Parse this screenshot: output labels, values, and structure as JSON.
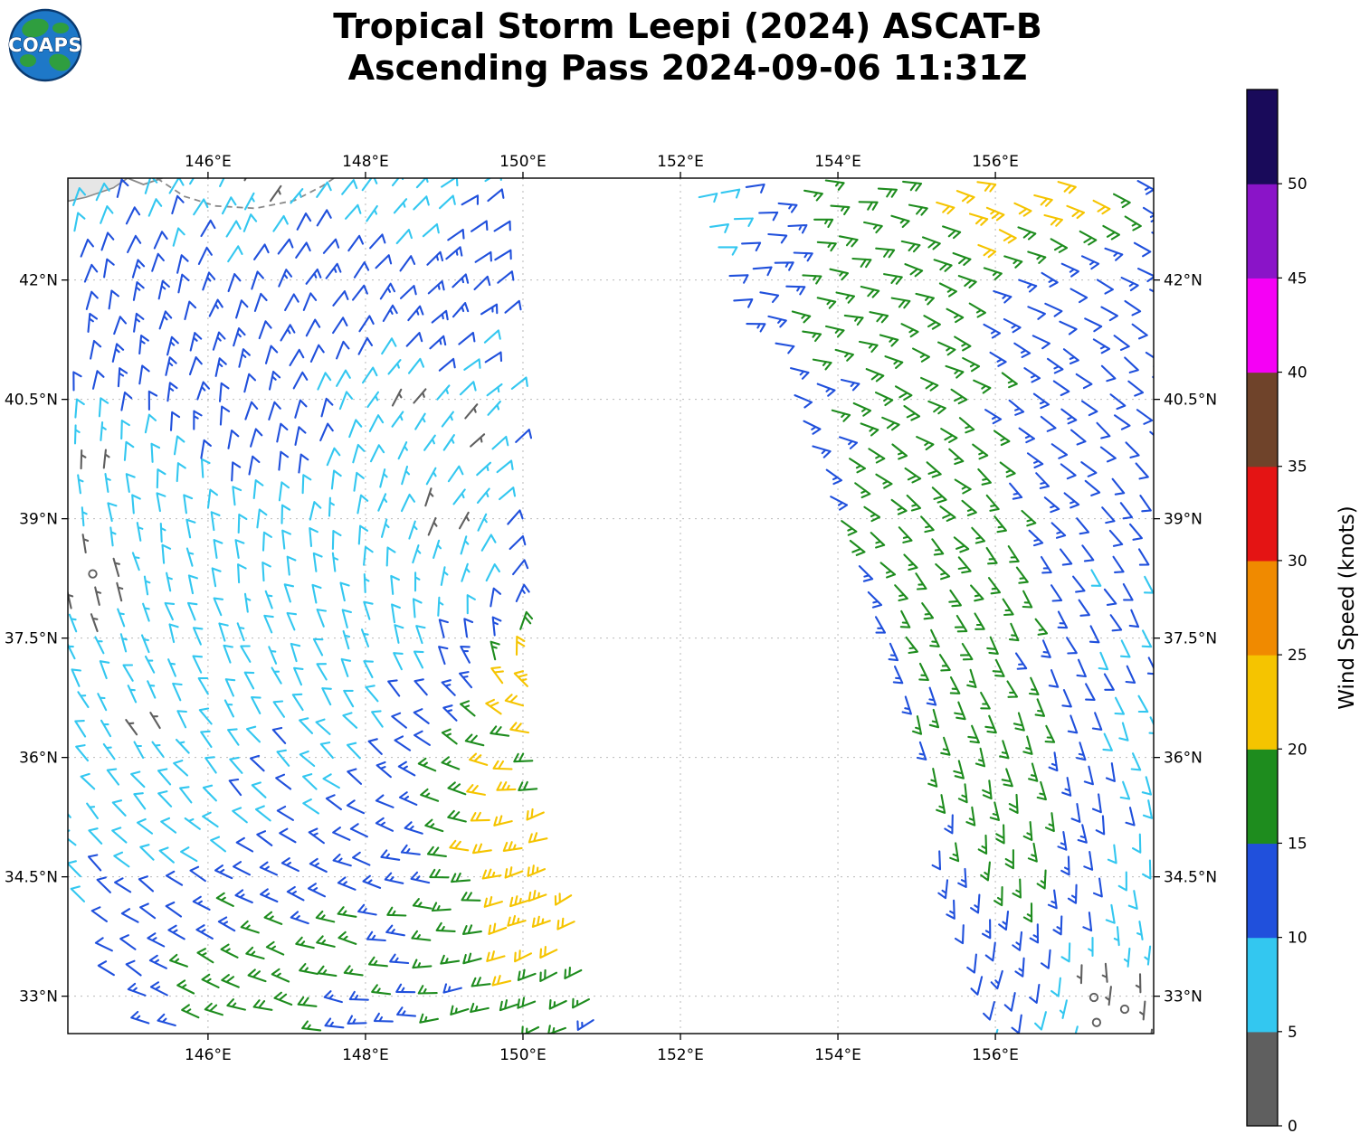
{
  "header": {
    "logo_text": "COAPS",
    "title_line1": "Tropical Storm Leepi (2024) ASCAT-B",
    "title_line2": "Ascending Pass 2024-09-06 11:31Z"
  },
  "chart_data": {
    "type": "scatter",
    "subtype": "satellite-wind-barb-swath-map",
    "title": "Tropical Storm Leepi (2024) ASCAT-B Ascending Pass 2024-09-06 11:31Z",
    "projection": "lon-lat",
    "lon_range": [
      144.22,
      158.01
    ],
    "lat_range": [
      32.53,
      43.28
    ],
    "grid": true,
    "axes": {
      "lon_ticks": [
        146,
        148,
        150,
        152,
        154,
        156
      ],
      "lon_tick_labels": [
        "146°E",
        "148°E",
        "150°E",
        "152°E",
        "154°E",
        "156°E"
      ],
      "lat_ticks": [
        33,
        34.5,
        36,
        37.5,
        39,
        40.5,
        42
      ],
      "lat_tick_labels": [
        "33°N",
        "34.5°N",
        "36°N",
        "37.5°N",
        "39°N",
        "40.5°N",
        "42°N"
      ]
    },
    "colorbar": {
      "label": "Wind Speed (knots)",
      "ticks": [
        0,
        5,
        10,
        15,
        20,
        25,
        30,
        35,
        40,
        45,
        50
      ],
      "max_display": 55,
      "bins": [
        {
          "min": 0,
          "color": "#5f5f5f"
        },
        {
          "min": 5,
          "color": "#33c7f0"
        },
        {
          "min": 10,
          "color": "#2050dc"
        },
        {
          "min": 15,
          "color": "#1e8c1e"
        },
        {
          "min": 20,
          "color": "#f5c400"
        },
        {
          "min": 25,
          "color": "#f08a00"
        },
        {
          "min": 30,
          "color": "#e41414"
        },
        {
          "min": 35,
          "color": "#6f432a"
        },
        {
          "min": 40,
          "color": "#f500f5"
        },
        {
          "min": 45,
          "color": "#8a14c8"
        },
        {
          "min": 50,
          "color": "#190a5a"
        }
      ]
    },
    "wind_field": {
      "barb_units": "knots",
      "observed_speed_range_kt": [
        0,
        25
      ],
      "direction_model": {
        "type": "cyclonic-nh",
        "center_lon": 150.5,
        "center_lat": 37.1,
        "inflow_deg": 25
      },
      "swaths": [
        {
          "name": "west-swath",
          "polygon": [
            [
              144.25,
              43.28
            ],
            [
              149.6,
              43.28
            ],
            [
              149.85,
              41.0
            ],
            [
              150.0,
              38.8
            ],
            [
              150.15,
              37.3
            ],
            [
              150.5,
              35.2
            ],
            [
              150.95,
              32.55
            ],
            [
              145.2,
              32.55
            ],
            [
              144.45,
              33.9
            ],
            [
              144.25,
              34.8
            ]
          ],
          "origin": [
            147.4,
            38.0
          ],
          "track_bearing_deg": -7,
          "spacing_deg": {
            "cross": 0.31,
            "along": 0.335
          },
          "speed_model": {
            "base_kt": 8,
            "gaussians": [
              {
                "lon": 150.45,
                "lat": 37.1,
                "amp": 17,
                "sig": 0.6
              },
              {
                "lon": 149.6,
                "lat": 35.9,
                "amp": 8,
                "sig": 0.7
              },
              {
                "lon": 150.0,
                "lat": 34.8,
                "amp": 9,
                "sig": 0.8
              },
              {
                "lon": 150.4,
                "lat": 33.5,
                "amp": 10,
                "sig": 0.9
              },
              {
                "lon": 147.5,
                "lat": 33.2,
                "amp": 6,
                "sig": 1.6
              },
              {
                "lon": 146.2,
                "lat": 32.9,
                "amp": 5,
                "sig": 1.0
              },
              {
                "lon": 150.05,
                "lat": 38.9,
                "amp": 5,
                "sig": 0.45
              },
              {
                "lon": 150.0,
                "lat": 39.6,
                "amp": 4,
                "sig": 0.4
              },
              {
                "lon": 147.6,
                "lat": 42.4,
                "amp": 5,
                "sig": 1.1
              },
              {
                "lon": 145.0,
                "lat": 41.4,
                "amp": 5,
                "sig": 0.9
              },
              {
                "lon": 148.9,
                "lat": 41.3,
                "amp": 3,
                "sig": 0.6
              },
              {
                "lon": 149.4,
                "lat": 42.4,
                "amp": 4,
                "sig": 0.7
              },
              {
                "lon": 146.5,
                "lat": 40.2,
                "amp": 3,
                "sig": 0.8
              },
              {
                "lon": 146.6,
                "lat": 43.1,
                "amp": -7,
                "sig": 0.45
              },
              {
                "lon": 148.3,
                "lat": 43.05,
                "amp": -6,
                "sig": 0.7
              },
              {
                "lon": 144.5,
                "lat": 38.1,
                "amp": -6,
                "sig": 0.5
              },
              {
                "lon": 144.4,
                "lat": 39.7,
                "amp": -5,
                "sig": 0.3
              },
              {
                "lon": 146.0,
                "lat": 34.85,
                "amp": -5,
                "sig": 0.25
              },
              {
                "lon": 145.1,
                "lat": 36.4,
                "amp": -4,
                "sig": 0.3
              },
              {
                "lon": 148.4,
                "lat": 40.5,
                "amp": -6,
                "sig": 0.35
              },
              {
                "lon": 149.3,
                "lat": 40.15,
                "amp": -5,
                "sig": 0.3
              },
              {
                "lon": 149.0,
                "lat": 38.9,
                "amp": -5,
                "sig": 0.35
              },
              {
                "lon": 149.6,
                "lat": 39.3,
                "amp": -4,
                "sig": 0.25
              }
            ]
          }
        },
        {
          "name": "east-swath",
          "polygon": [
            [
              151.95,
              43.28
            ],
            [
              158.01,
              43.28
            ],
            [
              158.01,
              32.55
            ],
            [
              155.95,
              32.55
            ],
            [
              155.1,
              35.3
            ],
            [
              154.35,
              37.6
            ],
            [
              153.55,
              39.9
            ],
            [
              152.5,
              42.1
            ]
          ],
          "origin": [
            155.1,
            38.0
          ],
          "track_bearing_deg": -20,
          "spacing_deg": {
            "cross": 0.31,
            "along": 0.335
          },
          "speed_model": {
            "base_kt": 11,
            "cross_profile": {
              "left_edge_lon_at_top": 152.0,
              "top_lat": 43.28,
              "edge_slope_lon_per_lat": 0.368,
              "right_edge_lon": 158.01,
              "green_amp": 7,
              "green_center_u": 0.38,
              "green_sig_u": 0.2,
              "right_taper_k": 9,
              "right_taper_u0": 0.55,
              "taper_lat_ref": 39.5,
              "taper_lat_scale": 6,
              "green_lat_taper_floor": 0.25
            },
            "gaussians": [
              {
                "lon": 155.8,
                "lat": 42.9,
                "amp": 7,
                "sig": 0.5
              },
              {
                "lon": 156.8,
                "lat": 43.2,
                "amp": 7,
                "sig": 0.5
              },
              {
                "lon": 157.2,
                "lat": 43.0,
                "amp": 5,
                "sig": 0.5
              },
              {
                "lon": 154.15,
                "lat": 38.75,
                "amp": 6,
                "sig": 0.15
              },
              {
                "lon": 152.6,
                "lat": 43.05,
                "amp": -4,
                "sig": 0.6
              },
              {
                "lon": 157.35,
                "lat": 32.95,
                "amp": -8,
                "sig": 0.6
              }
            ]
          }
        }
      ]
    },
    "land": {
      "fill_polygons": [
        [
          [
            144.22,
            43.28
          ],
          [
            144.98,
            43.28
          ],
          [
            144.8,
            43.16
          ],
          [
            144.45,
            43.04
          ],
          [
            144.22,
            42.99
          ]
        ]
      ],
      "coast_lines": [
        {
          "dashed": true,
          "points": [
            [
              145.35,
              43.28
            ],
            [
              145.7,
              43.05
            ],
            [
              146.1,
              42.93
            ],
            [
              146.6,
              42.9
            ],
            [
              147.1,
              43.0
            ],
            [
              147.45,
              43.18
            ],
            [
              147.6,
              43.28
            ]
          ]
        },
        {
          "dashed": false,
          "points": [
            [
              144.98,
              43.28
            ],
            [
              145.18,
              43.2
            ],
            [
              145.42,
              43.28
            ]
          ]
        }
      ]
    }
  }
}
